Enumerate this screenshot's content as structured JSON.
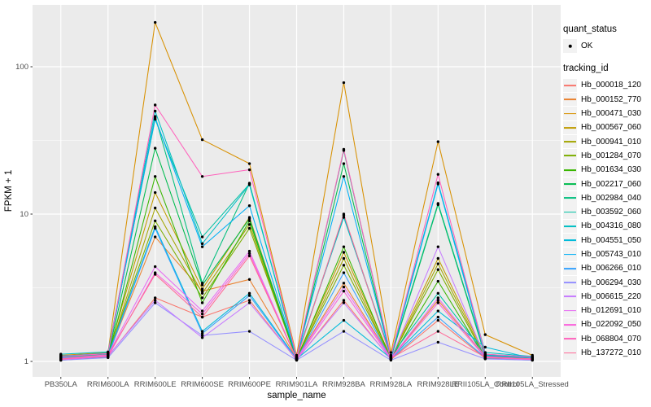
{
  "chart_data": {
    "type": "line",
    "x": {
      "label": "sample_name",
      "categories": [
        "PB350LA",
        "RRIM600LA",
        "RRIM600LE",
        "RRIM600SE",
        "RRIM600PE",
        "RRIM901LA",
        "RRIM928BA",
        "RRIM928LA",
        "RRIM928LE",
        "RRII105LA_Control",
        "RRII105LA_Stressed"
      ]
    },
    "y": {
      "label": "FPKM + 1",
      "scale": "log10",
      "ticks": [
        1,
        10,
        100
      ],
      "tick_labels": [
        "1",
        "10",
        "100"
      ],
      "minor_breaks": [
        3.1623,
        31.623
      ],
      "range_approx": [
        1,
        238
      ],
      "grid": "on"
    },
    "legend": {
      "position": "right",
      "quant_status_title": "quant_status",
      "quant_status_items": [
        {
          "label": "OK",
          "symbol": "point"
        }
      ],
      "tracking_id_title": "tracking_id"
    },
    "colors": {
      "panel_bg": "#EBEBEB",
      "grid": "#FFFFFF",
      "key_bg": "#F2F2F2",
      "tick_text": "#4D4D4D",
      "axis_text": "#000000",
      "point": "#000000",
      "tick_mark": "#333333"
    },
    "series": [
      {
        "tracking_id": "Hb_000018_120",
        "color": "#F8766D",
        "values": [
          1.05,
          1.08,
          2.7,
          2.0,
          2.6,
          1.02,
          2.6,
          1.03,
          1.9,
          1.05,
          1.03
        ]
      },
      {
        "tracking_id": "Hb_000152_770",
        "color": "#EA8331",
        "values": [
          1.02,
          1.1,
          7.0,
          3.0,
          3.6,
          1.04,
          3.4,
          1.05,
          2.6,
          1.08,
          1.04
        ]
      },
      {
        "tracking_id": "Hb_000471_030",
        "color": "#D89000",
        "values": [
          1.1,
          1.15,
          200,
          32,
          22,
          1.1,
          78,
          1.15,
          31,
          1.52,
          1.1
        ]
      },
      {
        "tracking_id": "Hb_000567_060",
        "color": "#C09B00",
        "values": [
          1.04,
          1.12,
          14,
          3.1,
          9.5,
          1.05,
          5.5,
          1.06,
          5.0,
          1.1,
          1.05
        ]
      },
      {
        "tracking_id": "Hb_000941_010",
        "color": "#A3A500",
        "values": [
          1.03,
          1.09,
          11,
          2.9,
          8.5,
          1.03,
          5.0,
          1.04,
          4.6,
          1.07,
          1.03
        ]
      },
      {
        "tracking_id": "Hb_001284_070",
        "color": "#7CAE00",
        "values": [
          1.06,
          1.11,
          9.0,
          2.7,
          8.0,
          1.04,
          4.5,
          1.05,
          4.2,
          1.06,
          1.04
        ]
      },
      {
        "tracking_id": "Hb_001634_030",
        "color": "#39B600",
        "values": [
          1.02,
          1.07,
          18,
          2.5,
          9.0,
          1.03,
          6.0,
          1.04,
          3.5,
          1.05,
          1.02
        ]
      },
      {
        "tracking_id": "Hb_002217_060",
        "color": "#00BB4E",
        "values": [
          1.05,
          1.1,
          28,
          3.3,
          9.3,
          1.05,
          22,
          1.06,
          11.6,
          1.09,
          1.05
        ]
      },
      {
        "tracking_id": "Hb_002984_040",
        "color": "#00BF7D",
        "values": [
          1.07,
          1.12,
          46,
          3.4,
          16.2,
          1.06,
          27,
          1.08,
          11.8,
          1.11,
          1.06
        ]
      },
      {
        "tracking_id": "Hb_003592_060",
        "color": "#00C1A3",
        "values": [
          1.08,
          1.14,
          44,
          7.0,
          16.0,
          1.07,
          9.8,
          1.09,
          2.9,
          1.12,
          1.07
        ]
      },
      {
        "tracking_id": "Hb_004316_080",
        "color": "#00BFC4",
        "values": [
          1.12,
          1.16,
          50,
          6.3,
          15.8,
          1.08,
          9.5,
          1.1,
          16.3,
          1.15,
          1.08
        ]
      },
      {
        "tracking_id": "Hb_004551_050",
        "color": "#00BBDA",
        "values": [
          1.06,
          1.1,
          8.2,
          1.6,
          2.9,
          1.04,
          1.9,
          1.05,
          2.2,
          1.25,
          1.05
        ]
      },
      {
        "tracking_id": "Hb_005743_010",
        "color": "#00B0F6",
        "values": [
          1.09,
          1.13,
          45,
          6.0,
          11.4,
          1.06,
          18,
          1.07,
          16.0,
          1.1,
          1.06
        ]
      },
      {
        "tracking_id": "Hb_006266_010",
        "color": "#35A2FF",
        "values": [
          1.03,
          1.08,
          8.0,
          1.55,
          2.8,
          1.03,
          4.0,
          1.04,
          2.0,
          1.06,
          1.03
        ]
      },
      {
        "tracking_id": "Hb_006294_030",
        "color": "#9590FF",
        "values": [
          1.02,
          1.06,
          2.5,
          1.5,
          1.6,
          1.02,
          1.6,
          1.02,
          1.35,
          1.04,
          1.02
        ]
      },
      {
        "tracking_id": "Hb_006615_220",
        "color": "#C77CFF",
        "values": [
          1.04,
          1.09,
          2.6,
          1.45,
          2.5,
          1.03,
          2.5,
          1.04,
          6.0,
          1.07,
          1.04
        ]
      },
      {
        "tracking_id": "Hb_012691_010",
        "color": "#E76BF3",
        "values": [
          1.05,
          1.11,
          4.4,
          2.2,
          5.6,
          1.04,
          3.2,
          1.05,
          2.7,
          1.08,
          1.04
        ]
      },
      {
        "tracking_id": "Hb_022092_050",
        "color": "#FA62DB",
        "values": [
          1.03,
          1.08,
          4.0,
          2.1,
          5.4,
          1.03,
          3.0,
          1.04,
          2.5,
          1.06,
          1.03
        ]
      },
      {
        "tracking_id": "Hb_068804_070",
        "color": "#FF62BC",
        "values": [
          1.08,
          1.13,
          55,
          18,
          20,
          1.07,
          27.5,
          1.09,
          18.6,
          1.12,
          1.07
        ]
      },
      {
        "tracking_id": "Hb_137272_010",
        "color": "#FF6A98",
        "values": [
          1.04,
          1.1,
          3.9,
          2.0,
          5.2,
          1.04,
          10,
          1.05,
          1.6,
          1.07,
          1.04
        ]
      }
    ]
  }
}
